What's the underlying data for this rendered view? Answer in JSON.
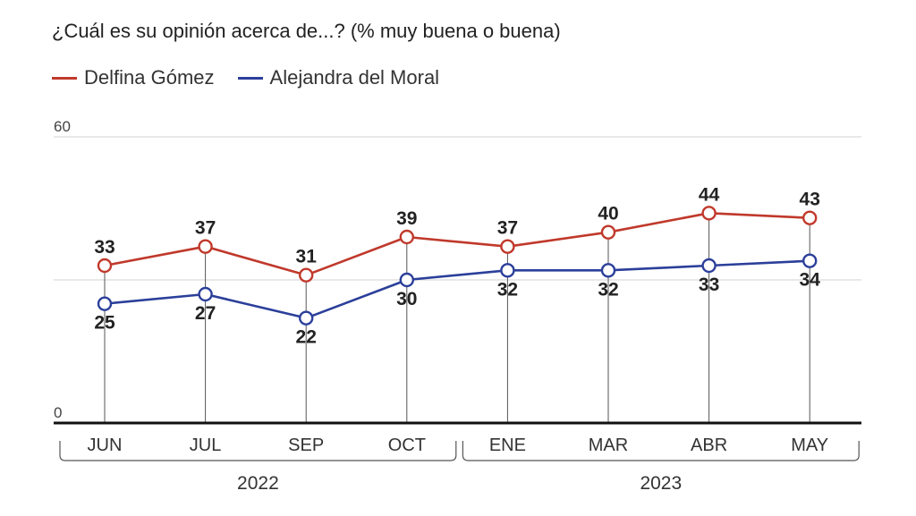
{
  "title": "¿Cuál es su opinión acerca de...? (% muy buena o buena)",
  "chart_data": {
    "type": "line",
    "categories": [
      "JUN",
      "JUL",
      "SEP",
      "OCT",
      "ENE",
      "MAR",
      "ABR",
      "MAY"
    ],
    "year_groups": [
      {
        "label": "2022",
        "categories": [
          "JUN",
          "JUL",
          "SEP",
          "OCT"
        ]
      },
      {
        "label": "2023",
        "categories": [
          "ENE",
          "MAR",
          "ABR",
          "MAY"
        ]
      }
    ],
    "ylim": [
      0,
      60
    ],
    "y_ticks": [
      "0",
      "60"
    ],
    "grid": true,
    "legend_position": "top-left",
    "series": [
      {
        "name": "Delfina Gómez",
        "color": "#c0392b",
        "values": [
          33,
          37,
          31,
          39,
          37,
          40,
          44,
          43
        ]
      },
      {
        "name": "Alejandra del Moral",
        "color": "#2b3f9a",
        "values": [
          25,
          27,
          22,
          30,
          32,
          32,
          33,
          34
        ]
      }
    ]
  }
}
